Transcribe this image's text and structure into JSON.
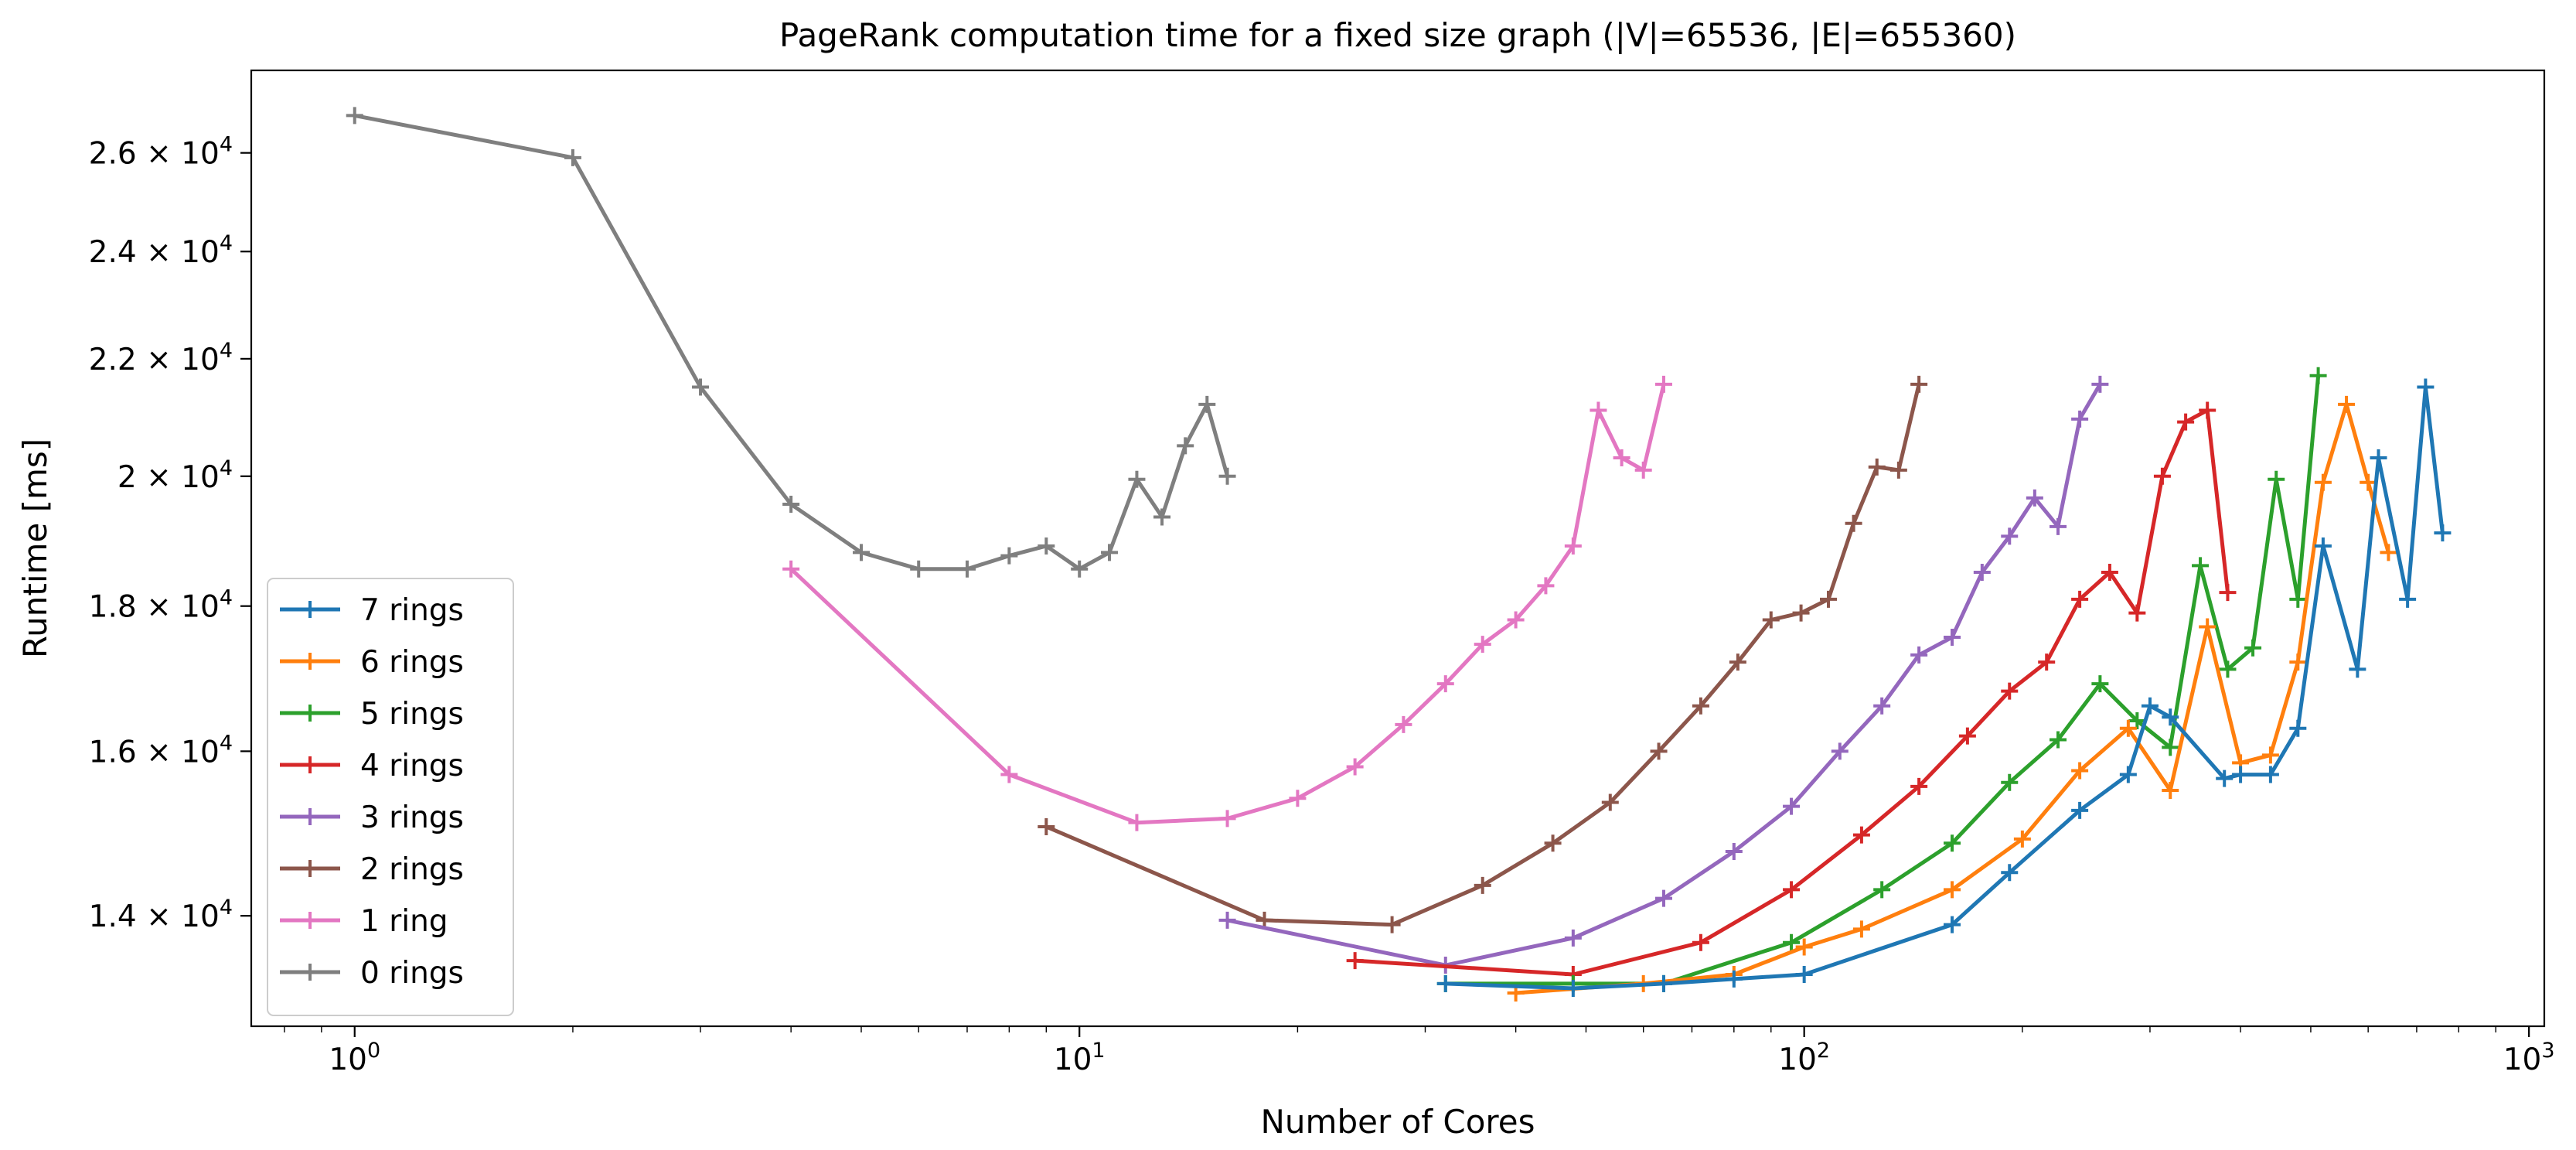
{
  "chart_data": {
    "type": "line",
    "title": "PageRank computation time for a fixed size graph (|V|=65536, |E|=655360)",
    "xlabel": "Number of Cores",
    "ylabel": "Runtime [ms]",
    "xscale": "log",
    "yscale": "log",
    "xlim": [
      0.72,
      1050
    ],
    "ylim": [
      12800,
      27800
    ],
    "x_ticks": [
      {
        "value": 1,
        "base": "10",
        "exp": "0"
      },
      {
        "value": 10,
        "base": "10",
        "exp": "1"
      },
      {
        "value": 100,
        "base": "10",
        "exp": "2"
      },
      {
        "value": 1000,
        "base": "10",
        "exp": "3"
      }
    ],
    "y_ticks": [
      {
        "value": 14000,
        "mant": "1.4",
        "base": "10",
        "exp": "4"
      },
      {
        "value": 16000,
        "mant": "1.6",
        "base": "10",
        "exp": "4"
      },
      {
        "value": 18000,
        "mant": "1.8",
        "base": "10",
        "exp": "4"
      },
      {
        "value": 20000,
        "mant": "2",
        "base": "10",
        "exp": "4"
      },
      {
        "value": 22000,
        "mant": "2.2",
        "base": "10",
        "exp": "4"
      },
      {
        "value": 24000,
        "mant": "2.4",
        "base": "10",
        "exp": "4"
      },
      {
        "value": 26000,
        "mant": "2.6",
        "base": "10",
        "exp": "4"
      }
    ],
    "legend_position": "lower-left",
    "series": [
      {
        "name": "7 rings",
        "color": "#1f77b4",
        "x": [
          32,
          48,
          64,
          80,
          100,
          160,
          192,
          240,
          280,
          300,
          320,
          380,
          400,
          440,
          480,
          520,
          580,
          620,
          680,
          720,
          760
        ],
        "y": [
          13250,
          13200,
          13250,
          13300,
          13350,
          13900,
          14500,
          15250,
          15700,
          16600,
          16450,
          15650,
          15700,
          15700,
          16300,
          18900,
          17100,
          20300,
          18100,
          21500,
          19100
        ]
      },
      {
        "name": "6 rings",
        "color": "#ff7f0e",
        "x": [
          40,
          60,
          80,
          100,
          120,
          160,
          200,
          240,
          280,
          320,
          360,
          400,
          440,
          480,
          520,
          560,
          600,
          640
        ],
        "y": [
          13150,
          13250,
          13350,
          13650,
          13850,
          14300,
          14900,
          15750,
          16300,
          15500,
          17700,
          15850,
          15950,
          17200,
          19900,
          21200,
          19900,
          18800
        ]
      },
      {
        "name": "5 rings",
        "color": "#2ca02c",
        "x": [
          32,
          48,
          64,
          96,
          128,
          160,
          192,
          224,
          256,
          288,
          320,
          352,
          384,
          416,
          448,
          480,
          512
        ],
        "y": [
          13250,
          13250,
          13250,
          13700,
          14300,
          14850,
          15600,
          16150,
          16900,
          16400,
          16050,
          18600,
          17100,
          17400,
          19950,
          18100,
          21700
        ]
      },
      {
        "name": "4 rings",
        "color": "#d62728",
        "x": [
          24,
          48,
          72,
          96,
          120,
          144,
          168,
          192,
          216,
          240,
          264,
          288,
          312,
          336,
          360,
          384
        ],
        "y": [
          13500,
          13350,
          13700,
          14300,
          14950,
          15550,
          16200,
          16800,
          17200,
          18100,
          18500,
          17900,
          20000,
          20900,
          21100,
          18200
        ]
      },
      {
        "name": "3 rings",
        "color": "#9467bd",
        "x": [
          16,
          32,
          48,
          64,
          80,
          96,
          112,
          128,
          144,
          160,
          176,
          192,
          208,
          224,
          240,
          256
        ],
        "y": [
          13950,
          13450,
          13750,
          14200,
          14750,
          15300,
          16000,
          16600,
          17300,
          17550,
          18500,
          19050,
          19650,
          19200,
          20950,
          21550
        ]
      },
      {
        "name": "2 rings",
        "color": "#8c564b",
        "x": [
          9,
          18,
          27,
          36,
          45,
          54,
          63,
          72,
          81,
          90,
          99,
          108,
          117,
          126,
          135,
          144
        ],
        "y": [
          15050,
          13950,
          13900,
          14350,
          14850,
          15350,
          16000,
          16600,
          17200,
          17800,
          17900,
          18100,
          19250,
          20150,
          20100,
          21550
        ]
      },
      {
        "name": "1 ring",
        "color": "#e377c2",
        "x": [
          4,
          8,
          12,
          16,
          20,
          24,
          28,
          32,
          36,
          40,
          44,
          48,
          52,
          56,
          60,
          64
        ],
        "y": [
          18550,
          15700,
          15100,
          15150,
          15400,
          15800,
          16350,
          16900,
          17450,
          17800,
          18300,
          18900,
          21100,
          20300,
          20100,
          21550
        ]
      },
      {
        "name": "0 rings",
        "color": "#7f7f7f",
        "x": [
          1,
          2,
          3,
          4,
          5,
          6,
          7,
          8,
          9,
          10,
          11,
          12,
          13,
          14,
          15,
          16
        ],
        "y": [
          26800,
          25900,
          21500,
          19550,
          18800,
          18550,
          18550,
          18750,
          18900,
          18550,
          18800,
          19950,
          19350,
          20500,
          21200,
          20000
        ]
      }
    ],
    "legend_order": [
      "7 rings",
      "6 rings",
      "5 rings",
      "4 rings",
      "3 rings",
      "2 rings",
      "1 ring",
      "0 rings"
    ]
  }
}
